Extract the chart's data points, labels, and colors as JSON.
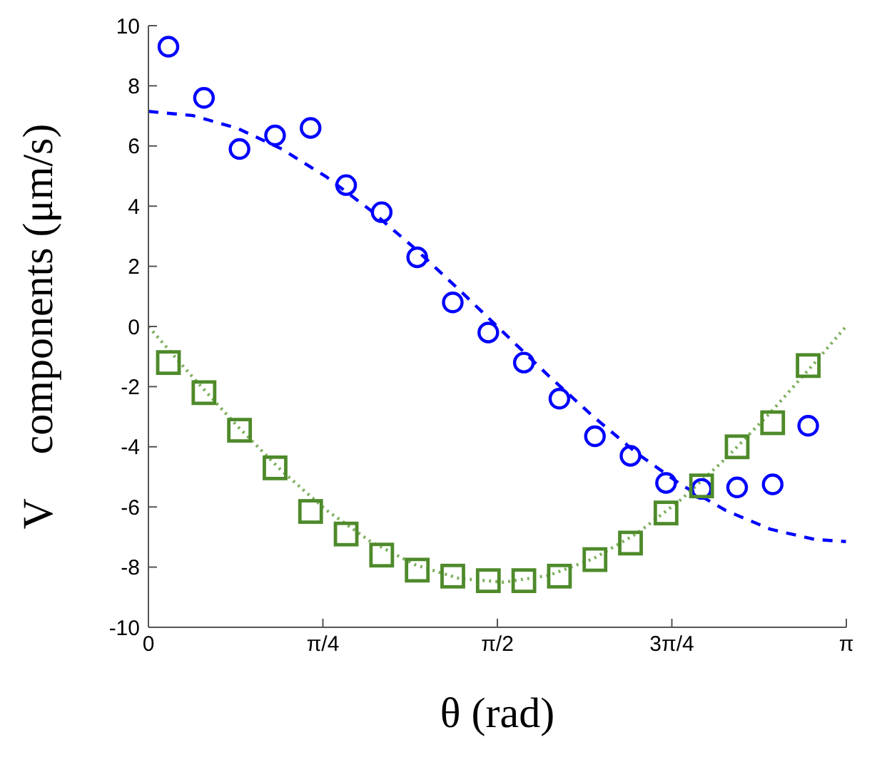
{
  "chart_data": {
    "type": "scatter",
    "xlabel": "θ (rad)",
    "ylabel": "V⃗ components (μm/s)",
    "xlim": [
      0,
      3.1416
    ],
    "xticks": [
      0,
      {
        "value": 0.7854,
        "label": "π/4"
      },
      {
        "value": 1.5708,
        "label": "π/2"
      },
      {
        "value": 2.3562,
        "label": "3π/4"
      },
      {
        "value": 3.1416,
        "label": "π"
      }
    ],
    "ylim": [
      -10,
      10
    ],
    "yticks": [
      -10,
      -8,
      -6,
      -4,
      -2,
      0,
      2,
      4,
      6,
      8,
      10
    ],
    "grid": false,
    "legend": false,
    "series": [
      {
        "type": "line",
        "line_style": "dashed",
        "marker": "none",
        "color": "#0000ff",
        "x": [
          0,
          0.2,
          0.4,
          0.6,
          0.8,
          1.0,
          1.2,
          1.4,
          1.6,
          1.8,
          2.0,
          2.2,
          2.4,
          2.6,
          2.8,
          3.0,
          3.14
        ],
        "values": [
          7.15,
          7.01,
          6.59,
          5.9,
          4.98,
          3.86,
          2.59,
          1.21,
          -0.21,
          -1.63,
          -2.98,
          -4.22,
          -5.27,
          -6.12,
          -6.74,
          -7.08,
          -7.15
        ]
      },
      {
        "type": "line",
        "line_style": "dotted",
        "marker": "none",
        "color": "#7fb060",
        "x": [
          0,
          0.2,
          0.4,
          0.6,
          0.8,
          1.0,
          1.2,
          1.4,
          1.6,
          1.8,
          2.0,
          2.2,
          2.4,
          2.6,
          2.8,
          3.0,
          3.14
        ],
        "values": [
          0,
          -1.69,
          -3.31,
          -4.8,
          -6.1,
          -7.15,
          -7.92,
          -8.38,
          -8.5,
          -8.28,
          -7.73,
          -6.88,
          -5.74,
          -4.38,
          -2.86,
          -1.2,
          0
        ]
      },
      {
        "marker": "circle",
        "color": "#0000ff",
        "x": [
          0.09,
          0.25,
          0.41,
          0.57,
          0.73,
          0.89,
          1.05,
          1.21,
          1.37,
          1.53,
          1.69,
          1.85,
          2.01,
          2.17,
          2.33,
          2.49,
          2.65,
          2.81,
          2.97
        ],
        "values": [
          9.3,
          7.6,
          5.9,
          6.35,
          6.6,
          4.7,
          3.8,
          2.3,
          0.8,
          -0.2,
          -1.2,
          -2.4,
          -3.65,
          -4.3,
          -5.2,
          -5.4,
          -5.35,
          -5.25,
          -3.3
        ]
      },
      {
        "marker": "square",
        "color": "#4e8a2a",
        "x": [
          0.09,
          0.25,
          0.41,
          0.57,
          0.73,
          0.89,
          1.05,
          1.21,
          1.37,
          1.53,
          1.69,
          1.85,
          2.01,
          2.17,
          2.33,
          2.49,
          2.65,
          2.81,
          2.97
        ],
        "values": [
          -1.2,
          -2.2,
          -3.45,
          -4.7,
          -6.15,
          -6.9,
          -7.6,
          -8.1,
          -8.3,
          -8.45,
          -8.45,
          -8.3,
          -7.75,
          -7.2,
          -6.2,
          -5.3,
          -4.0,
          -3.2,
          -1.3
        ]
      }
    ]
  }
}
